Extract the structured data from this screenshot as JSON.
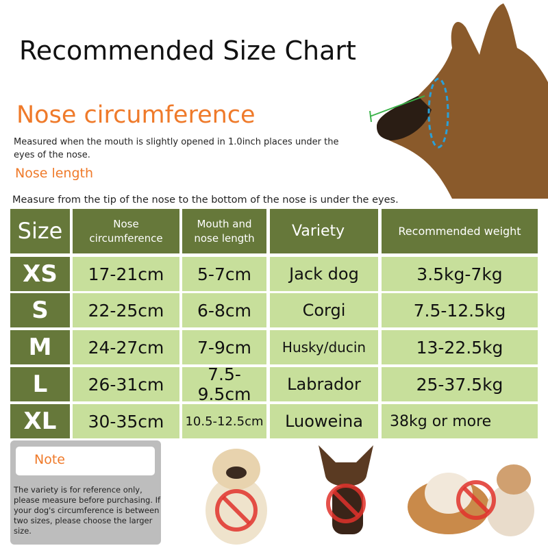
{
  "title": "Recommended Size Chart",
  "nose_circumference": {
    "heading": "Nose circumference",
    "description": "Measured when the mouth is slightly opened in 1.0inch places under the eyes of the nose."
  },
  "nose_length": {
    "heading": "Nose length",
    "description": "Measure from the tip of the nose to the bottom of the nose is under the eyes."
  },
  "table": {
    "headers": [
      "Size",
      "Nose circumference",
      "Mouth and nose length",
      "Variety",
      "Recommended weight"
    ],
    "rows": [
      [
        "XS",
        "17-21cm",
        "5-7cm",
        "Jack dog",
        "3.5kg-7kg"
      ],
      [
        "S",
        "22-25cm",
        "6-8cm",
        "Corgi",
        "7.5-12.5kg"
      ],
      [
        "M",
        "24-27cm",
        "7-9cm",
        "Husky/ducin",
        "13-22.5kg"
      ],
      [
        "L",
        "26-31cm",
        "7.5-9.5cm",
        "Labrador",
        "25-37.5kg"
      ],
      [
        "XL",
        "30-35cm",
        "10.5-12.5cm",
        "Luoweina",
        "38kg or more"
      ]
    ]
  },
  "note": {
    "label": "Note",
    "text": "The variety is for reference only, please measure before purchasing. If your dog's circumference is between two sizes, please choose the larger size."
  },
  "colors": {
    "header": "#66783a",
    "cell": "#c7df9b",
    "accent": "#ef7a2a",
    "note_bg": "#bdbdbd",
    "prohibit": "#e0322c"
  }
}
